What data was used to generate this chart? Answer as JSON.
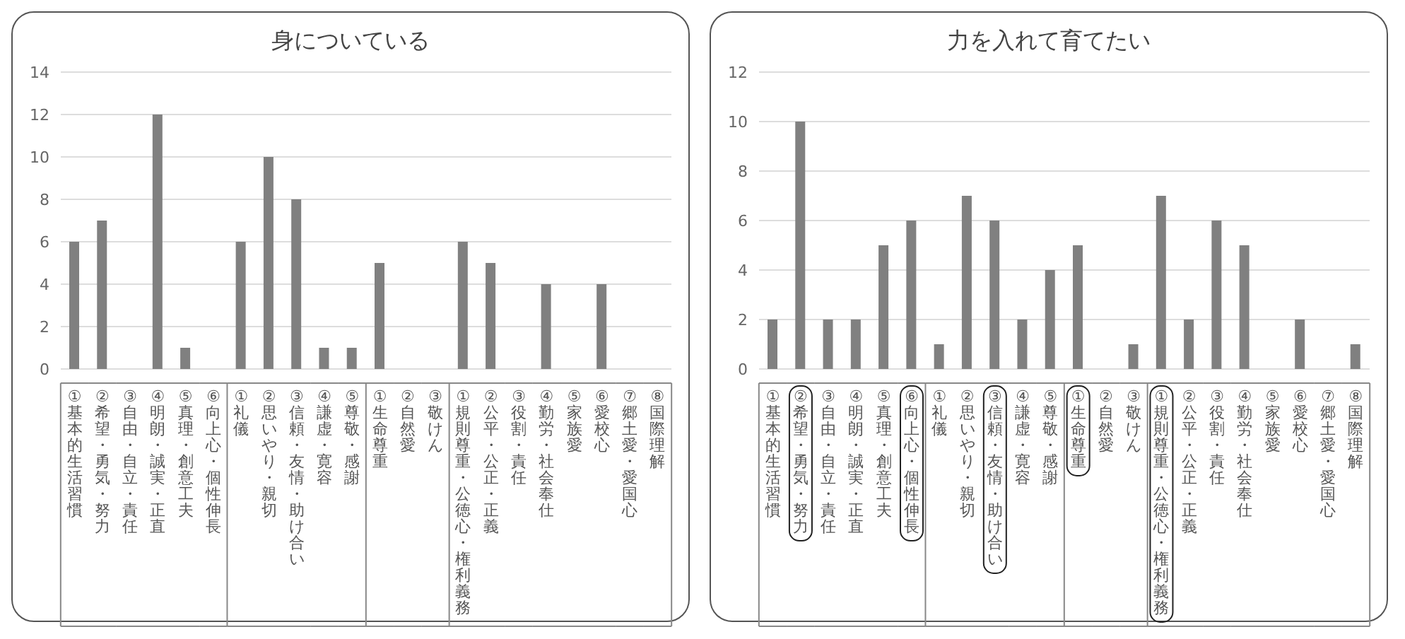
{
  "chart_data": [
    {
      "type": "bar",
      "title": "身についている",
      "categories": [
        "①基本的生活習慣",
        "②希望・勇気・努力",
        "③自由・自立・責任",
        "④明朗・誠実・正直",
        "⑤真理・創意工夫",
        "⑥向上心・個性伸長",
        "①礼儀",
        "②思いやり・親切",
        "③信頼・友情・助け合い",
        "④謙虚・寛容",
        "⑤尊敬・感謝",
        "①生命尊重",
        "②自然愛",
        "③敬けん",
        "①規則尊重・公徳心・権利義務",
        "②公平・公正・正義",
        "③役割・責任",
        "④勤労・社会奉仕",
        "⑤家族愛",
        "⑥愛校心",
        "⑦郷土愛・愛国心",
        "⑧国際理解"
      ],
      "values": [
        6,
        7,
        0,
        12,
        1,
        0,
        6,
        10,
        8,
        1,
        1,
        5,
        0,
        0,
        6,
        5,
        0,
        4,
        0,
        4,
        0,
        0
      ],
      "color": "#808080",
      "ylim": [
        0,
        14
      ],
      "yticks": [
        0,
        2,
        4,
        6,
        8,
        10,
        12,
        14
      ],
      "grid": "y"
    },
    {
      "type": "bar",
      "title": "力を入れて育てたい",
      "categories": [
        "①基本的生活習慣",
        "②希望・勇気・努力",
        "③自由・自立・責任",
        "④明朗・誠実・正直",
        "⑤真理・創意工夫",
        "⑥向上心・個性伸長",
        "①礼儀",
        "②思いやり・親切",
        "③信頼・友情・助け合い",
        "④謙虚・寛容",
        "⑤尊敬・感謝",
        "①生命尊重",
        "②自然愛",
        "③敬けん",
        "①規則尊重・公徳心・権利義務",
        "②公平・公正・正義",
        "③役割・責任",
        "④勤労・社会奉仕",
        "⑤家族愛",
        "⑥愛校心",
        "⑦郷土愛・愛国心",
        "⑧国際理解"
      ],
      "values": [
        2,
        10,
        2,
        2,
        5,
        6,
        1,
        7,
        6,
        2,
        4,
        5,
        0,
        1,
        7,
        2,
        6,
        5,
        0,
        2,
        0,
        1
      ],
      "color": "#808080",
      "ylim": [
        0,
        12
      ],
      "yticks": [
        0,
        2,
        4,
        6,
        8,
        10,
        12
      ],
      "grid": "y"
    }
  ]
}
